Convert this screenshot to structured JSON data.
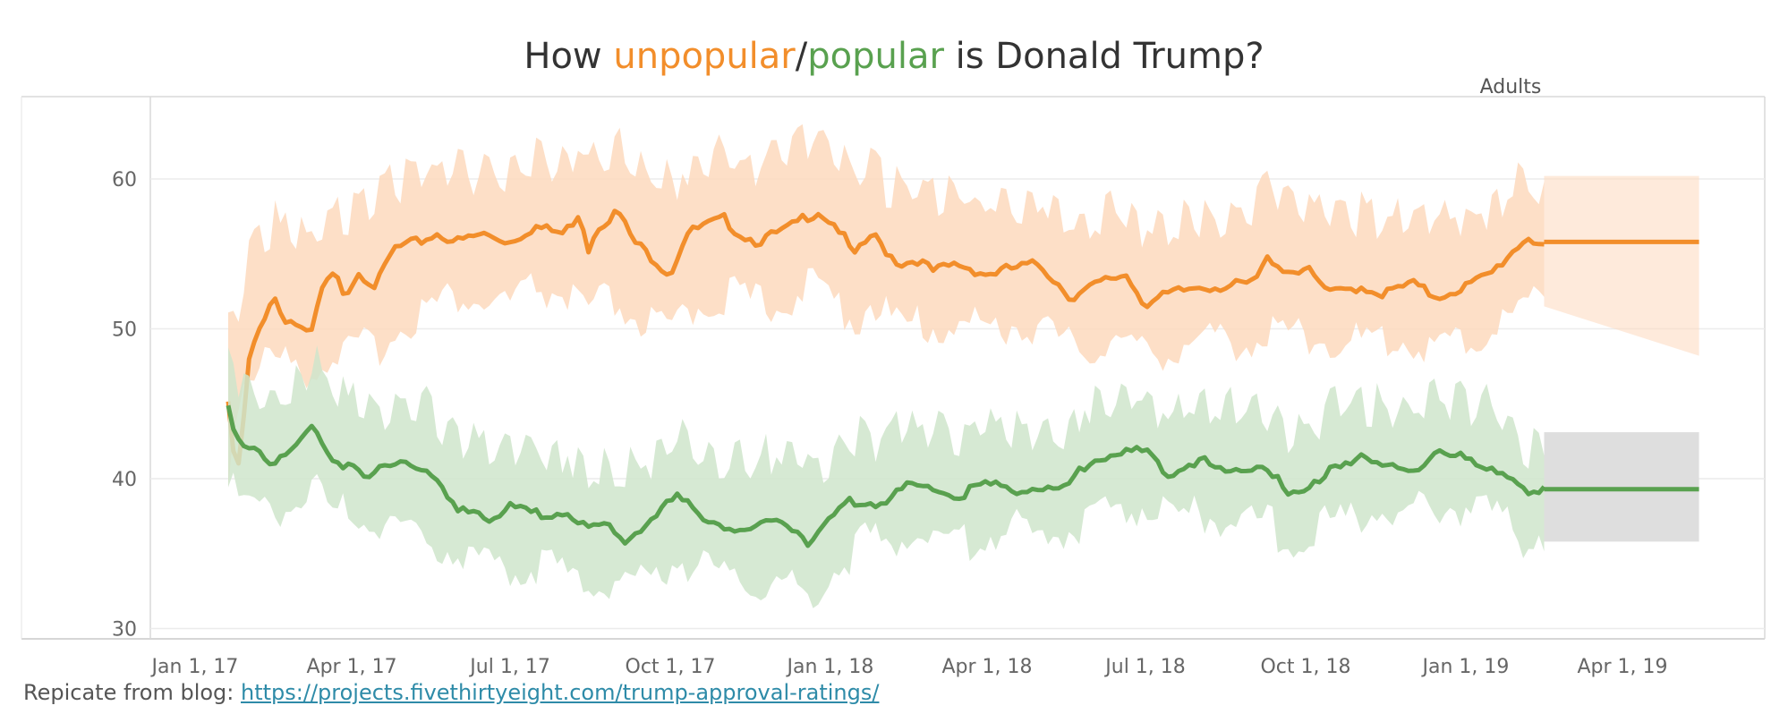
{
  "title": {
    "prefix": "How ",
    "unpopular": "unpopular",
    "slash": "/",
    "popular": "popular",
    "suffix": " is Donald Trump?"
  },
  "panel_label": "Adults",
  "footer": {
    "text": "Repicate from blog: ",
    "link": "https://projects.fivethirtyeight.com/trump-approval-ratings/"
  },
  "colors": {
    "unpopular": "#f28e2b",
    "popular": "#59a14f",
    "unpopular_band": "#fdd9bd",
    "popular_band": "#cfe5cb",
    "forecast_grey": "#dedede"
  },
  "chart_data": {
    "type": "line",
    "xlabel": "",
    "ylabel": "",
    "ylim": [
      29,
      65
    ],
    "yticks": [
      30,
      40,
      50,
      60
    ],
    "xticks": [
      "Jan 1, 17",
      "Apr 1, 17",
      "Jul 1, 17",
      "Oct 1, 17",
      "Jan 1, 18",
      "Apr 1, 18",
      "Jul 1, 18",
      "Oct 1, 18",
      "Jan 1, 19",
      "Apr 1, 19"
    ],
    "xtick_dates": [
      "2017-01-01",
      "2017-04-01",
      "2017-07-01",
      "2017-10-01",
      "2018-01-01",
      "2018-04-01",
      "2018-07-01",
      "2018-10-01",
      "2019-01-01",
      "2019-04-01"
    ],
    "grid": true,
    "forecast": {
      "start": "2019-02-15",
      "end": "2019-05-15",
      "unpopular": {
        "value": 55.8,
        "band_start": [
          51.5,
          60.2
        ],
        "band_end": [
          48.2,
          60.2
        ]
      },
      "popular": {
        "value": 39.3,
        "band": [
          35.8,
          43.1
        ]
      }
    },
    "series": [
      {
        "name": "unpopular",
        "dates": [
          "2017-01-20",
          "2017-01-25",
          "2017-01-28",
          "2017-02-01",
          "2017-02-08",
          "2017-02-15",
          "2017-02-20",
          "2017-02-28",
          "2017-03-08",
          "2017-03-15",
          "2017-03-22",
          "2017-03-28",
          "2017-04-05",
          "2017-04-15",
          "2017-04-25",
          "2017-05-10",
          "2017-05-20",
          "2017-06-01",
          "2017-06-15",
          "2017-07-01",
          "2017-07-15",
          "2017-08-01",
          "2017-08-10",
          "2017-08-15",
          "2017-08-20",
          "2017-09-01",
          "2017-09-10",
          "2017-09-20",
          "2017-10-01",
          "2017-10-10",
          "2017-10-20",
          "2017-11-01",
          "2017-11-10",
          "2017-11-20",
          "2017-12-01",
          "2017-12-10",
          "2017-12-15",
          "2017-12-25",
          "2018-01-05",
          "2018-01-15",
          "2018-01-25",
          "2018-02-01",
          "2018-02-10",
          "2018-02-20",
          "2018-03-01",
          "2018-03-15",
          "2018-04-01",
          "2018-04-15",
          "2018-05-01",
          "2018-05-20",
          "2018-06-01",
          "2018-06-10",
          "2018-06-20",
          "2018-07-01",
          "2018-07-15",
          "2018-08-01",
          "2018-08-15",
          "2018-09-01",
          "2018-09-10",
          "2018-09-20",
          "2018-10-01",
          "2018-10-15",
          "2018-11-01",
          "2018-11-15",
          "2018-12-01",
          "2018-12-15",
          "2019-01-01",
          "2019-01-15",
          "2019-01-25",
          "2019-02-05",
          "2019-02-15"
        ],
        "values": [
          45.0,
          40.0,
          43.0,
          48.0,
          50.5,
          52.5,
          51.0,
          50.5,
          49.5,
          52.8,
          53.8,
          52.5,
          54.0,
          53.0,
          55.5,
          56.0,
          56.5,
          56.0,
          56.5,
          56.0,
          57.0,
          56.5,
          58.0,
          55.5,
          57.0,
          58.0,
          56.0,
          55.0,
          53.8,
          56.5,
          57.0,
          57.5,
          56.5,
          56.0,
          56.5,
          57.0,
          57.5,
          58.0,
          57.0,
          55.0,
          56.5,
          55.5,
          54.5,
          54.8,
          54.0,
          54.5,
          53.8,
          54.2,
          54.5,
          52.2,
          53.0,
          53.5,
          53.8,
          51.8,
          52.5,
          53.0,
          53.0,
          53.2,
          55.0,
          54.0,
          54.2,
          52.5,
          53.0,
          52.5,
          53.2,
          52.3,
          53.0,
          53.8,
          55.0,
          56.3,
          55.8
        ],
        "band_lo": [
          40,
          44,
          46,
          46.5,
          47,
          47.5,
          47,
          47,
          46.5,
          47,
          48,
          47.5,
          48,
          48,
          49,
          50.5,
          51,
          51.5,
          51,
          51,
          52,
          51.5,
          51,
          50,
          51,
          51,
          50,
          49.5,
          49,
          50.5,
          51,
          51.5,
          51.5,
          51,
          51,
          51.5,
          52,
          52,
          51,
          50,
          51,
          50.5,
          49.5,
          49.5,
          49.5,
          49.5,
          49.5,
          49.5,
          49.5,
          48,
          48,
          48.5,
          48.5,
          47.5,
          48,
          48.5,
          48.5,
          48.5,
          49,
          49,
          49,
          48.5,
          48.5,
          48.5,
          48.5,
          48,
          48.5,
          49,
          50,
          51,
          51.5
        ],
        "band_hi": [
          51,
          51,
          54,
          56,
          57,
          58,
          57,
          57,
          57,
          58,
          59,
          58,
          59.5,
          59.5,
          60.5,
          61,
          61.5,
          61.5,
          61,
          61.5,
          62,
          62,
          63,
          62,
          62,
          63,
          62,
          61,
          60.5,
          61.5,
          62,
          62.5,
          62,
          61.5,
          62,
          62.5,
          63,
          63.5,
          62.5,
          61,
          61.5,
          60.5,
          60,
          60,
          59.5,
          60,
          59,
          59,
          59.5,
          57.5,
          58,
          58.5,
          59,
          57.5,
          58,
          58,
          58,
          58.5,
          60.5,
          59,
          59.5,
          58,
          58.5,
          58,
          58.5,
          58,
          58.5,
          59,
          60,
          61,
          60.2
        ]
      },
      {
        "name": "popular",
        "dates": [
          "2017-01-20",
          "2017-01-25",
          "2017-01-30",
          "2017-02-05",
          "2017-02-15",
          "2017-02-25",
          "2017-03-05",
          "2017-03-10",
          "2017-03-20",
          "2017-04-01",
          "2017-04-10",
          "2017-04-20",
          "2017-05-01",
          "2017-05-15",
          "2017-06-01",
          "2017-06-10",
          "2017-06-20",
          "2017-07-01",
          "2017-07-15",
          "2017-08-01",
          "2017-08-15",
          "2017-08-25",
          "2017-09-05",
          "2017-09-15",
          "2017-09-25",
          "2017-10-05",
          "2017-10-15",
          "2017-11-01",
          "2017-11-15",
          "2017-12-01",
          "2017-12-10",
          "2017-12-15",
          "2017-12-20",
          "2018-01-01",
          "2018-01-10",
          "2018-01-20",
          "2018-02-01",
          "2018-02-15",
          "2018-03-01",
          "2018-03-15",
          "2018-04-01",
          "2018-04-15",
          "2018-05-01",
          "2018-05-15",
          "2018-06-01",
          "2018-06-15",
          "2018-07-01",
          "2018-07-15",
          "2018-08-01",
          "2018-08-15",
          "2018-09-01",
          "2018-09-10",
          "2018-09-20",
          "2018-10-01",
          "2018-10-15",
          "2018-11-01",
          "2018-11-15",
          "2018-12-01",
          "2018-12-15",
          "2019-01-01",
          "2019-01-15",
          "2019-01-25",
          "2019-02-05",
          "2019-02-15"
        ],
        "values": [
          45.0,
          43.0,
          42.5,
          42.5,
          41.0,
          42.0,
          43.0,
          44.0,
          41.5,
          41.0,
          40.0,
          41.0,
          41.5,
          40.5,
          38.0,
          38.2,
          37.5,
          38.2,
          37.8,
          38.0,
          36.8,
          37.0,
          36.0,
          37.0,
          38.0,
          39.0,
          38.0,
          37.0,
          36.5,
          37.5,
          37.0,
          36.5,
          35.5,
          37.5,
          38.5,
          38.8,
          38.5,
          39.8,
          39.5,
          39.0,
          39.8,
          39.5,
          39.5,
          39.5,
          41.5,
          41.8,
          42.0,
          40.5,
          41.5,
          40.5,
          41.0,
          41.0,
          39.0,
          39.2,
          41.0,
          41.5,
          41.0,
          40.8,
          41.8,
          41.5,
          41.0,
          40.5,
          39.0,
          39.3
        ],
        "band_lo": [
          39,
          38,
          37,
          37,
          37,
          37.5,
          38,
          39,
          37,
          37,
          36.5,
          36.5,
          36,
          35.5,
          34,
          34,
          33.5,
          33.5,
          33.5,
          33,
          32.5,
          32.5,
          32.5,
          32.5,
          33,
          34,
          33.5,
          33,
          32.5,
          32.5,
          32,
          32,
          31.5,
          33,
          34,
          35,
          35,
          35.5,
          35.5,
          35,
          35.5,
          36,
          35.5,
          35.5,
          37,
          37.5,
          37.5,
          36.5,
          37,
          36.5,
          36.5,
          36.5,
          35,
          35,
          36.5,
          37,
          37,
          37,
          37.5,
          37.5,
          37,
          36.5,
          35,
          35.8
        ],
        "band_hi": [
          51,
          48,
          47,
          47,
          46,
          47,
          48,
          49,
          47,
          46,
          45.5,
          45.5,
          46,
          45.5,
          43,
          43,
          42.5,
          43,
          42.5,
          42.5,
          41.5,
          42,
          41.5,
          42,
          42.5,
          43.5,
          43,
          42,
          42,
          42.5,
          42,
          42,
          41,
          42.5,
          43,
          43.5,
          43.5,
          44,
          44,
          43.5,
          44,
          44,
          44,
          44,
          46,
          46.5,
          46.5,
          45,
          46,
          45.5,
          45.5,
          45.5,
          44,
          44,
          45.5,
          46,
          45.5,
          45,
          46,
          46,
          45.5,
          45,
          43,
          43.1
        ]
      }
    ]
  }
}
